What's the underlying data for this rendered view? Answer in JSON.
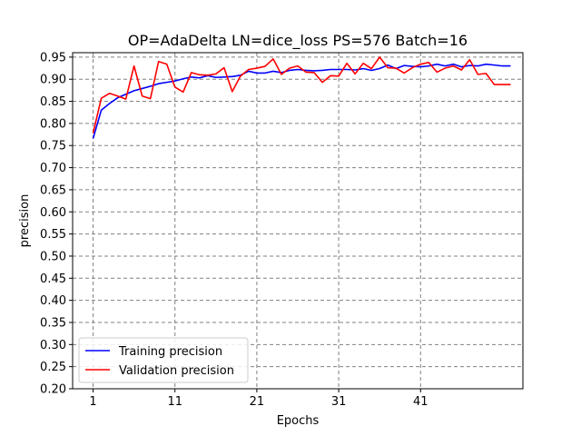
{
  "chart_data": {
    "type": "line",
    "title": "OP=AdaDelta LN=dice_loss PS=576 Batch=16",
    "xlabel": "Epochs",
    "ylabel": "precision",
    "xlim": [
      -1.5,
      53.5
    ],
    "ylim": [
      0.2,
      0.96
    ],
    "x_ticks": [
      1,
      11,
      21,
      31,
      41
    ],
    "y_ticks": [
      0.2,
      0.25,
      0.3,
      0.35,
      0.4,
      0.45,
      0.5,
      0.55,
      0.6,
      0.65,
      0.7,
      0.75,
      0.8,
      0.85,
      0.9,
      0.95
    ],
    "grid": true,
    "legend": "bottom-left",
    "x": [
      1,
      2,
      3,
      4,
      5,
      6,
      7,
      8,
      9,
      10,
      11,
      12,
      13,
      14,
      15,
      16,
      17,
      18,
      19,
      20,
      21,
      22,
      23,
      24,
      25,
      26,
      27,
      28,
      29,
      30,
      31,
      32,
      33,
      34,
      35,
      36,
      37,
      38,
      39,
      40,
      41,
      42,
      43,
      44,
      45,
      46,
      47,
      48,
      49,
      50,
      51,
      52
    ],
    "series": [
      {
        "name": "Training precision",
        "color": "#0000ff",
        "values": [
          0.766,
          0.83,
          0.845,
          0.858,
          0.866,
          0.874,
          0.879,
          0.884,
          0.89,
          0.893,
          0.896,
          0.901,
          0.905,
          0.903,
          0.908,
          0.904,
          0.905,
          0.906,
          0.909,
          0.918,
          0.914,
          0.914,
          0.918,
          0.915,
          0.92,
          0.922,
          0.92,
          0.919,
          0.92,
          0.922,
          0.922,
          0.922,
          0.921,
          0.924,
          0.92,
          0.924,
          0.932,
          0.924,
          0.931,
          0.929,
          0.928,
          0.93,
          0.934,
          0.93,
          0.934,
          0.928,
          0.931,
          0.93,
          0.934,
          0.932,
          0.93,
          0.93
        ]
      },
      {
        "name": "Validation precision",
        "color": "#ff0000",
        "values": [
          0.778,
          0.857,
          0.868,
          0.862,
          0.855,
          0.93,
          0.862,
          0.856,
          0.94,
          0.934,
          0.882,
          0.871,
          0.915,
          0.91,
          0.909,
          0.912,
          0.926,
          0.872,
          0.907,
          0.922,
          0.925,
          0.929,
          0.946,
          0.911,
          0.925,
          0.93,
          0.916,
          0.915,
          0.893,
          0.908,
          0.907,
          0.936,
          0.912,
          0.936,
          0.924,
          0.95,
          0.926,
          0.925,
          0.914,
          0.926,
          0.934,
          0.938,
          0.916,
          0.925,
          0.93,
          0.921,
          0.944,
          0.911,
          0.913,
          0.888,
          0.888,
          0.888
        ]
      }
    ]
  }
}
